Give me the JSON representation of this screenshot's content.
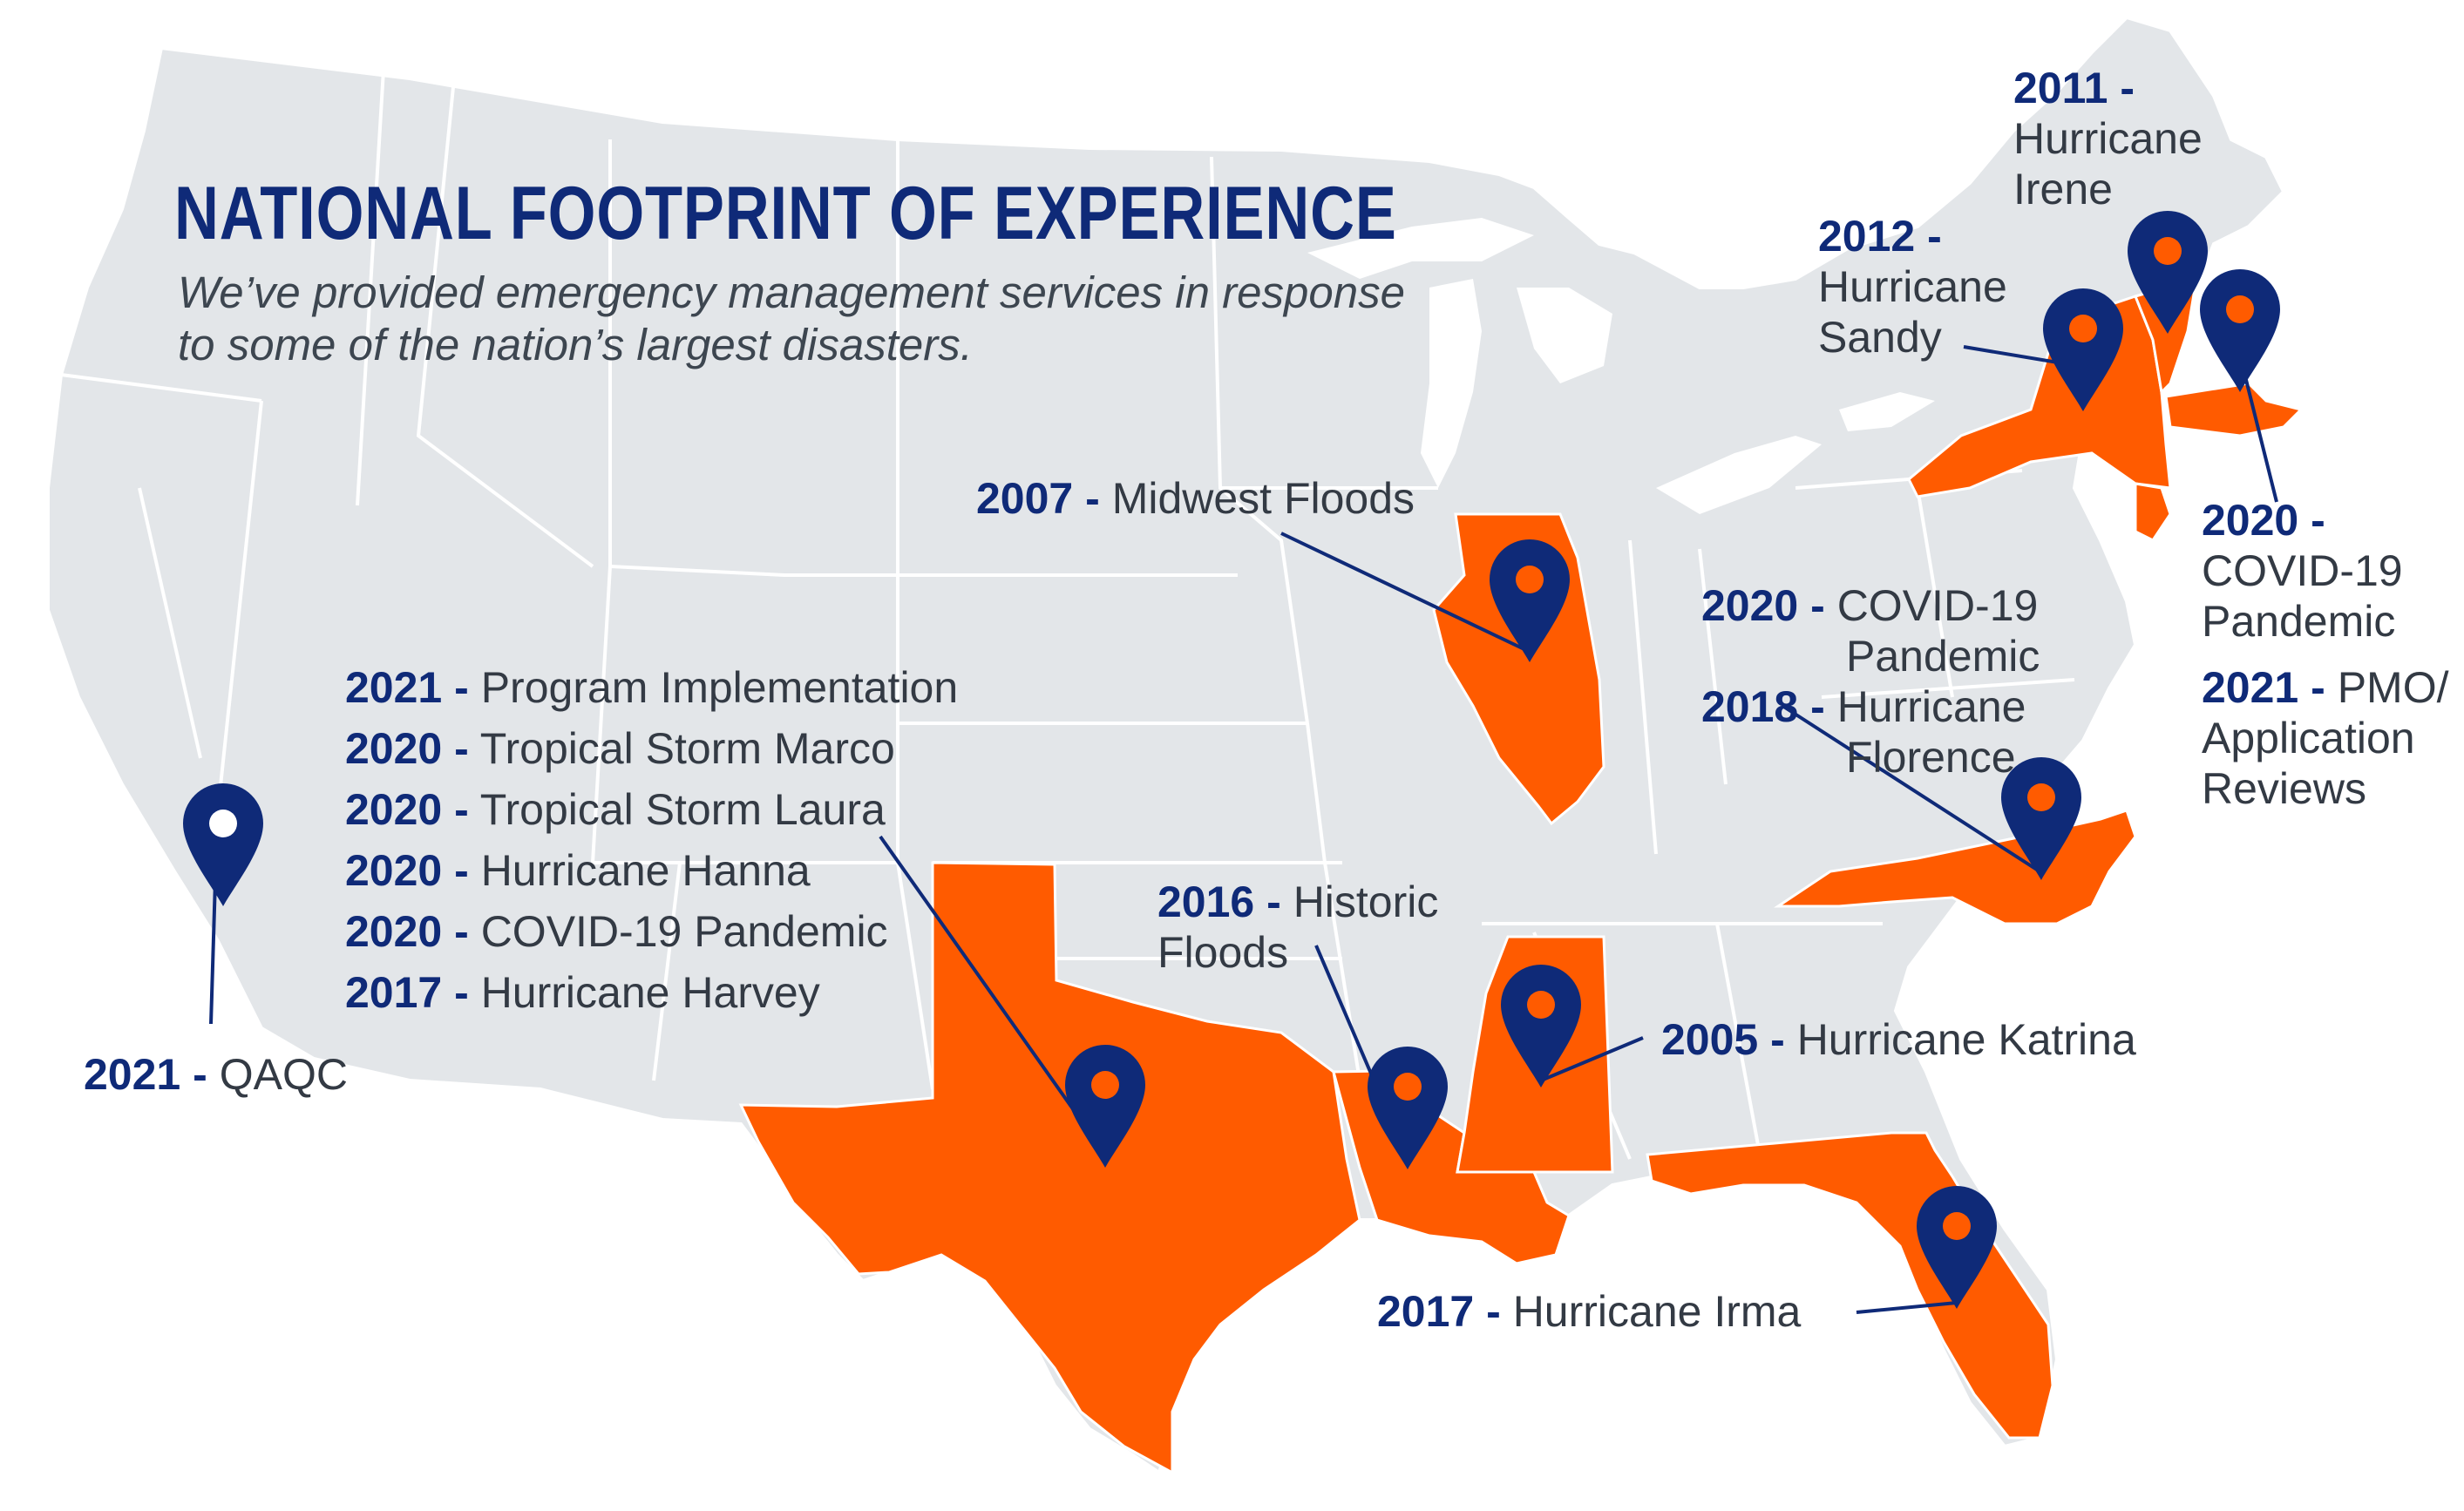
{
  "header": {
    "title": "NATIONAL FOOTPRINT OF EXPERIENCE",
    "subtitle": "We’ve provided emergency management services in response to some of the nation’s largest disasters."
  },
  "colors": {
    "land": "#e3e6e9",
    "border": "#ffffff",
    "highlight": "#ff5b00",
    "pin": "#0f2a78",
    "year_text": "#0f2a78",
    "body_text": "#333a44"
  },
  "highlighted_states": [
    "Texas",
    "Louisiana",
    "Mississippi",
    "Florida",
    "North Carolina",
    "Illinois",
    "New York",
    "Vermont",
    "Massachusetts",
    "New Jersey"
  ],
  "pins": [
    {
      "state": "California",
      "icon": "map-pin-icon"
    },
    {
      "state": "Texas",
      "icon": "map-pin-icon"
    },
    {
      "state": "Louisiana",
      "icon": "map-pin-icon"
    },
    {
      "state": "Mississippi",
      "icon": "map-pin-icon"
    },
    {
      "state": "Florida",
      "icon": "map-pin-icon"
    },
    {
      "state": "North Carolina",
      "icon": "map-pin-icon"
    },
    {
      "state": "Illinois",
      "icon": "map-pin-icon"
    },
    {
      "state": "New York",
      "icon": "map-pin-icon"
    },
    {
      "state": "Vermont",
      "icon": "map-pin-icon"
    },
    {
      "state": "Massachusetts",
      "icon": "map-pin-icon"
    }
  ],
  "labels": {
    "california": [
      {
        "year": "2021",
        "sep": "-",
        "text": "QAQC"
      }
    ],
    "texas": [
      {
        "year": "2021",
        "sep": "-",
        "text": "Program Implementation"
      },
      {
        "year": "2020",
        "sep": "-",
        "text": "Tropical Storm Marco"
      },
      {
        "year": "2020",
        "sep": "-",
        "text": "Tropical Storm Laura"
      },
      {
        "year": "2020",
        "sep": "-",
        "text": "Hurricane Hanna"
      },
      {
        "year": "2020",
        "sep": "-",
        "text": "COVID-19 Pandemic"
      },
      {
        "year": "2017",
        "sep": "-",
        "text": "Hurricane Harvey"
      }
    ],
    "louisiana": {
      "year": "2016",
      "sep": "-",
      "line1": "Historic",
      "line2": "Floods"
    },
    "mississippi": {
      "year": "2005",
      "sep": "-",
      "text": "Hurricane Katrina"
    },
    "florida": {
      "year": "2017",
      "sep": "-",
      "text": "Hurricane Irma"
    },
    "illinois": {
      "year": "2007",
      "sep": "-",
      "text": "Midwest Floods"
    },
    "north_carolina": [
      {
        "year": "2020",
        "sep": "-",
        "line1": "COVID-19",
        "line2": "Pandemic"
      },
      {
        "year": "2018",
        "sep": "-",
        "line1": "Hurricane",
        "line2": "Florence"
      }
    ],
    "new_york": {
      "year": "2012",
      "sep": "-",
      "line1": "Hurricane",
      "line2": "Sandy"
    },
    "vermont": {
      "year": "2011",
      "sep": "-",
      "line1": "Hurricane",
      "line2": "Irene"
    },
    "massachusetts": [
      {
        "year": "2020",
        "sep": "-",
        "line1": "COVID-19",
        "line2": "Pandemic"
      },
      {
        "year": "2021",
        "sep": "-",
        "line1": "PMO/",
        "line2": "Application",
        "line3": "Reviews"
      }
    ]
  }
}
